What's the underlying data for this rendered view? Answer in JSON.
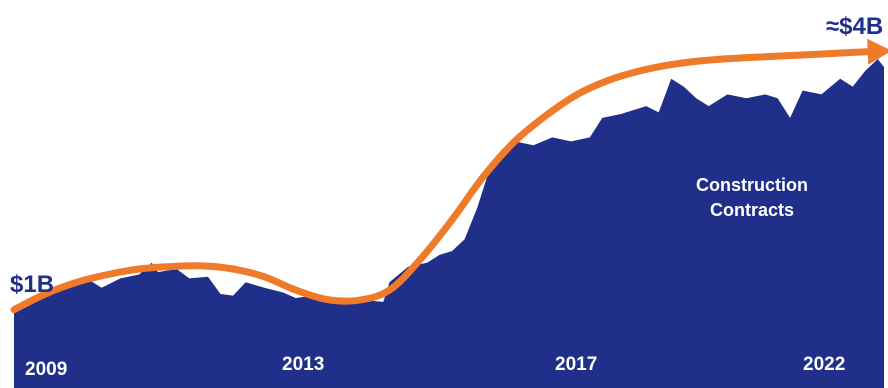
{
  "chart_data": {
    "type": "area",
    "title": "",
    "xlabel": "",
    "ylabel": "",
    "x_ticks": [
      "2009",
      "2013",
      "2017",
      "2022"
    ],
    "xlim": [
      2009,
      2022.9
    ],
    "ylim": [
      0,
      4.7
    ],
    "grid": false,
    "legend": "none",
    "start_annotation": "$1B",
    "end_annotation": "≈$4B",
    "series": [
      {
        "name": "Construction Contracts",
        "color": "#1f2f8a",
        "values": [
          [
            2009.0,
            1.05
          ],
          [
            2009.3,
            1.15
          ],
          [
            2009.6,
            1.25
          ],
          [
            2009.9,
            1.35
          ],
          [
            2010.2,
            1.38
          ],
          [
            2010.4,
            1.28
          ],
          [
            2010.7,
            1.4
          ],
          [
            2011.0,
            1.45
          ],
          [
            2011.2,
            1.6
          ],
          [
            2011.3,
            1.48
          ],
          [
            2011.6,
            1.52
          ],
          [
            2011.8,
            1.4
          ],
          [
            2012.1,
            1.42
          ],
          [
            2012.3,
            1.2
          ],
          [
            2012.5,
            1.18
          ],
          [
            2012.7,
            1.35
          ],
          [
            2013.0,
            1.28
          ],
          [
            2013.3,
            1.22
          ],
          [
            2013.5,
            1.15
          ],
          [
            2013.8,
            1.18
          ],
          [
            2014.1,
            1.12
          ],
          [
            2014.3,
            1.08
          ],
          [
            2014.6,
            1.12
          ],
          [
            2014.9,
            1.1
          ],
          [
            2015.0,
            1.35
          ],
          [
            2015.3,
            1.55
          ],
          [
            2015.6,
            1.6
          ],
          [
            2015.8,
            1.7
          ],
          [
            2016.0,
            1.75
          ],
          [
            2016.2,
            1.9
          ],
          [
            2016.4,
            2.3
          ],
          [
            2016.6,
            2.8
          ],
          [
            2016.8,
            3.05
          ],
          [
            2017.0,
            3.15
          ],
          [
            2017.3,
            3.1
          ],
          [
            2017.6,
            3.2
          ],
          [
            2017.9,
            3.15
          ],
          [
            2018.2,
            3.2
          ],
          [
            2018.4,
            3.45
          ],
          [
            2018.7,
            3.5
          ],
          [
            2018.9,
            3.55
          ],
          [
            2019.1,
            3.6
          ],
          [
            2019.3,
            3.52
          ],
          [
            2019.5,
            3.95
          ],
          [
            2019.7,
            3.85
          ],
          [
            2019.9,
            3.7
          ],
          [
            2020.1,
            3.6
          ],
          [
            2020.4,
            3.75
          ],
          [
            2020.7,
            3.7
          ],
          [
            2021.0,
            3.75
          ],
          [
            2021.2,
            3.7
          ],
          [
            2021.4,
            3.45
          ],
          [
            2021.6,
            3.8
          ],
          [
            2021.9,
            3.75
          ],
          [
            2022.2,
            3.95
          ],
          [
            2022.4,
            3.85
          ],
          [
            2022.6,
            4.05
          ],
          [
            2022.8,
            4.2
          ],
          [
            2022.9,
            4.1
          ]
        ]
      },
      {
        "name": "",
        "color": "#ee7a2a",
        "values": [
          [
            2009.0,
            1.0
          ],
          [
            2009.5,
            1.2
          ],
          [
            2010.0,
            1.35
          ],
          [
            2010.5,
            1.45
          ],
          [
            2011.0,
            1.52
          ],
          [
            2011.5,
            1.55
          ],
          [
            2012.0,
            1.56
          ],
          [
            2012.5,
            1.52
          ],
          [
            2013.0,
            1.42
          ],
          [
            2013.5,
            1.25
          ],
          [
            2014.0,
            1.13
          ],
          [
            2014.5,
            1.12
          ],
          [
            2015.0,
            1.25
          ],
          [
            2015.5,
            1.65
          ],
          [
            2016.0,
            2.15
          ],
          [
            2016.5,
            2.7
          ],
          [
            2017.0,
            3.15
          ],
          [
            2017.5,
            3.48
          ],
          [
            2018.0,
            3.75
          ],
          [
            2018.5,
            3.93
          ],
          [
            2019.0,
            4.05
          ],
          [
            2019.5,
            4.13
          ],
          [
            2020.0,
            4.18
          ],
          [
            2020.5,
            4.21
          ],
          [
            2021.0,
            4.23
          ],
          [
            2021.5,
            4.25
          ],
          [
            2022.0,
            4.27
          ],
          [
            2022.5,
            4.29
          ],
          [
            2022.8,
            4.3
          ]
        ]
      }
    ]
  }
}
